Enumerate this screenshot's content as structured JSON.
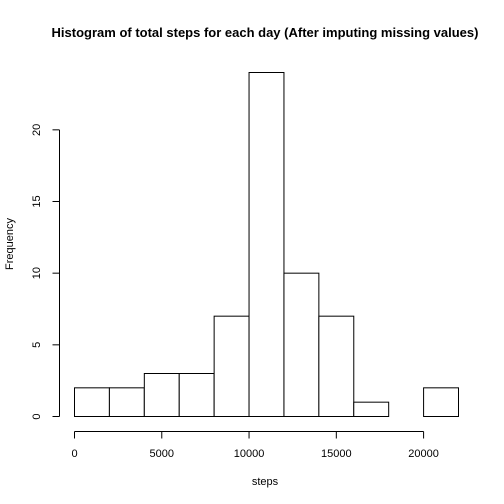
{
  "chart_data": {
    "type": "bar",
    "title": "Histogram of total steps for each day (After imputing missing values)",
    "xlabel": "steps",
    "ylabel": "Frequency",
    "bin_edges": [
      0,
      2000,
      4000,
      6000,
      8000,
      10000,
      12000,
      14000,
      16000,
      18000,
      20000,
      22000
    ],
    "values": [
      2,
      2,
      3,
      3,
      7,
      24,
      10,
      7,
      1,
      0,
      2
    ],
    "xlim": [
      0,
      22000
    ],
    "ylim": [
      0,
      24
    ],
    "x_ticks": [
      0,
      5000,
      10000,
      15000,
      20000
    ],
    "y_ticks": [
      0,
      5,
      10,
      15,
      20
    ],
    "grid": false
  }
}
